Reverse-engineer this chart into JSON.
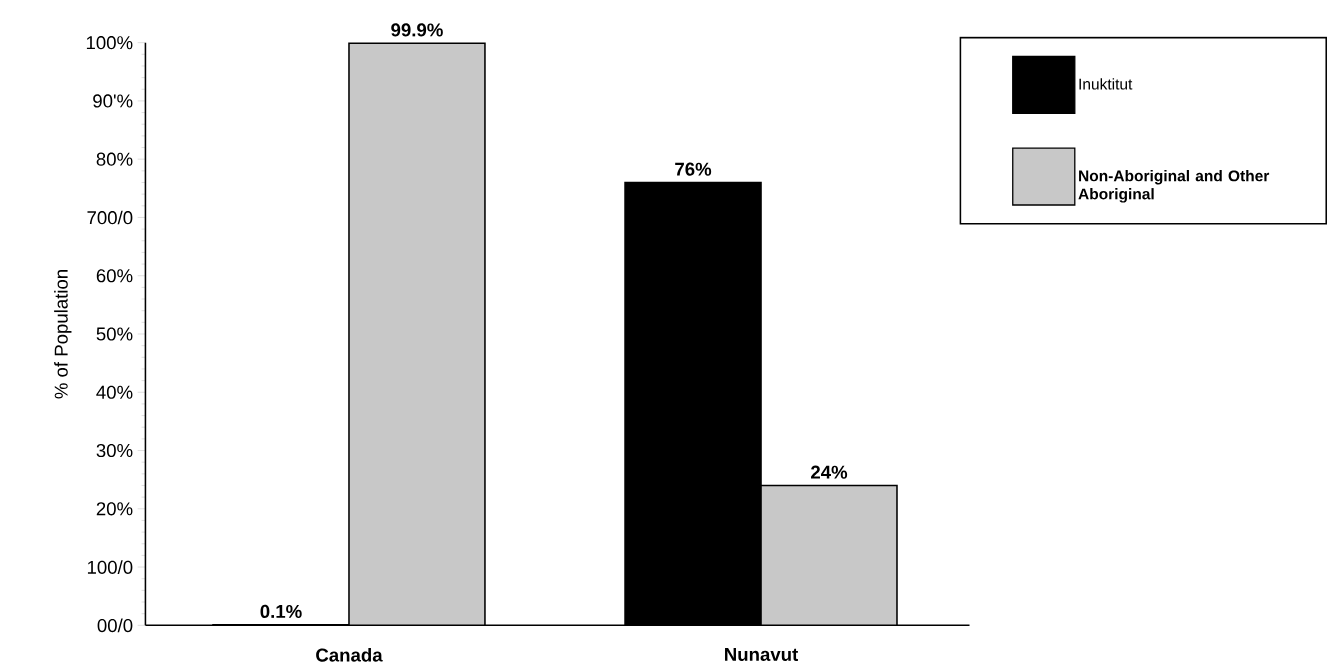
{
  "chart_data": {
    "type": "bar",
    "ylabel": "% of Population",
    "categories": [
      "Canada",
      "Nunavut"
    ],
    "series": [
      {
        "name": "Inuktitut",
        "color": "#000000",
        "values": [
          0.1,
          76
        ],
        "value_labels": [
          "0.1%",
          "76%"
        ]
      },
      {
        "name": "Non-Aboriginal and Other Aboriginal",
        "color": "#c8c8c8",
        "values": [
          99.9,
          24
        ],
        "value_labels": [
          "99.9%",
          "24%"
        ]
      }
    ],
    "ylim": [
      0,
      100
    ],
    "yticks": [
      {
        "value": 0,
        "label": "00/0"
      },
      {
        "value": 10,
        "label": "100/0"
      },
      {
        "value": 20,
        "label": "20%"
      },
      {
        "value": 30,
        "label": "30%"
      },
      {
        "value": 40,
        "label": "40%"
      },
      {
        "value": 50,
        "label": "50%"
      },
      {
        "value": 60,
        "label": "60%"
      },
      {
        "value": 70,
        "label": "700/0"
      },
      {
        "value": 80,
        "label": "80%"
      },
      {
        "value": 90,
        "label": "90'%"
      },
      {
        "value": 100,
        "label": "100%"
      }
    ],
    "legend": "top right"
  }
}
